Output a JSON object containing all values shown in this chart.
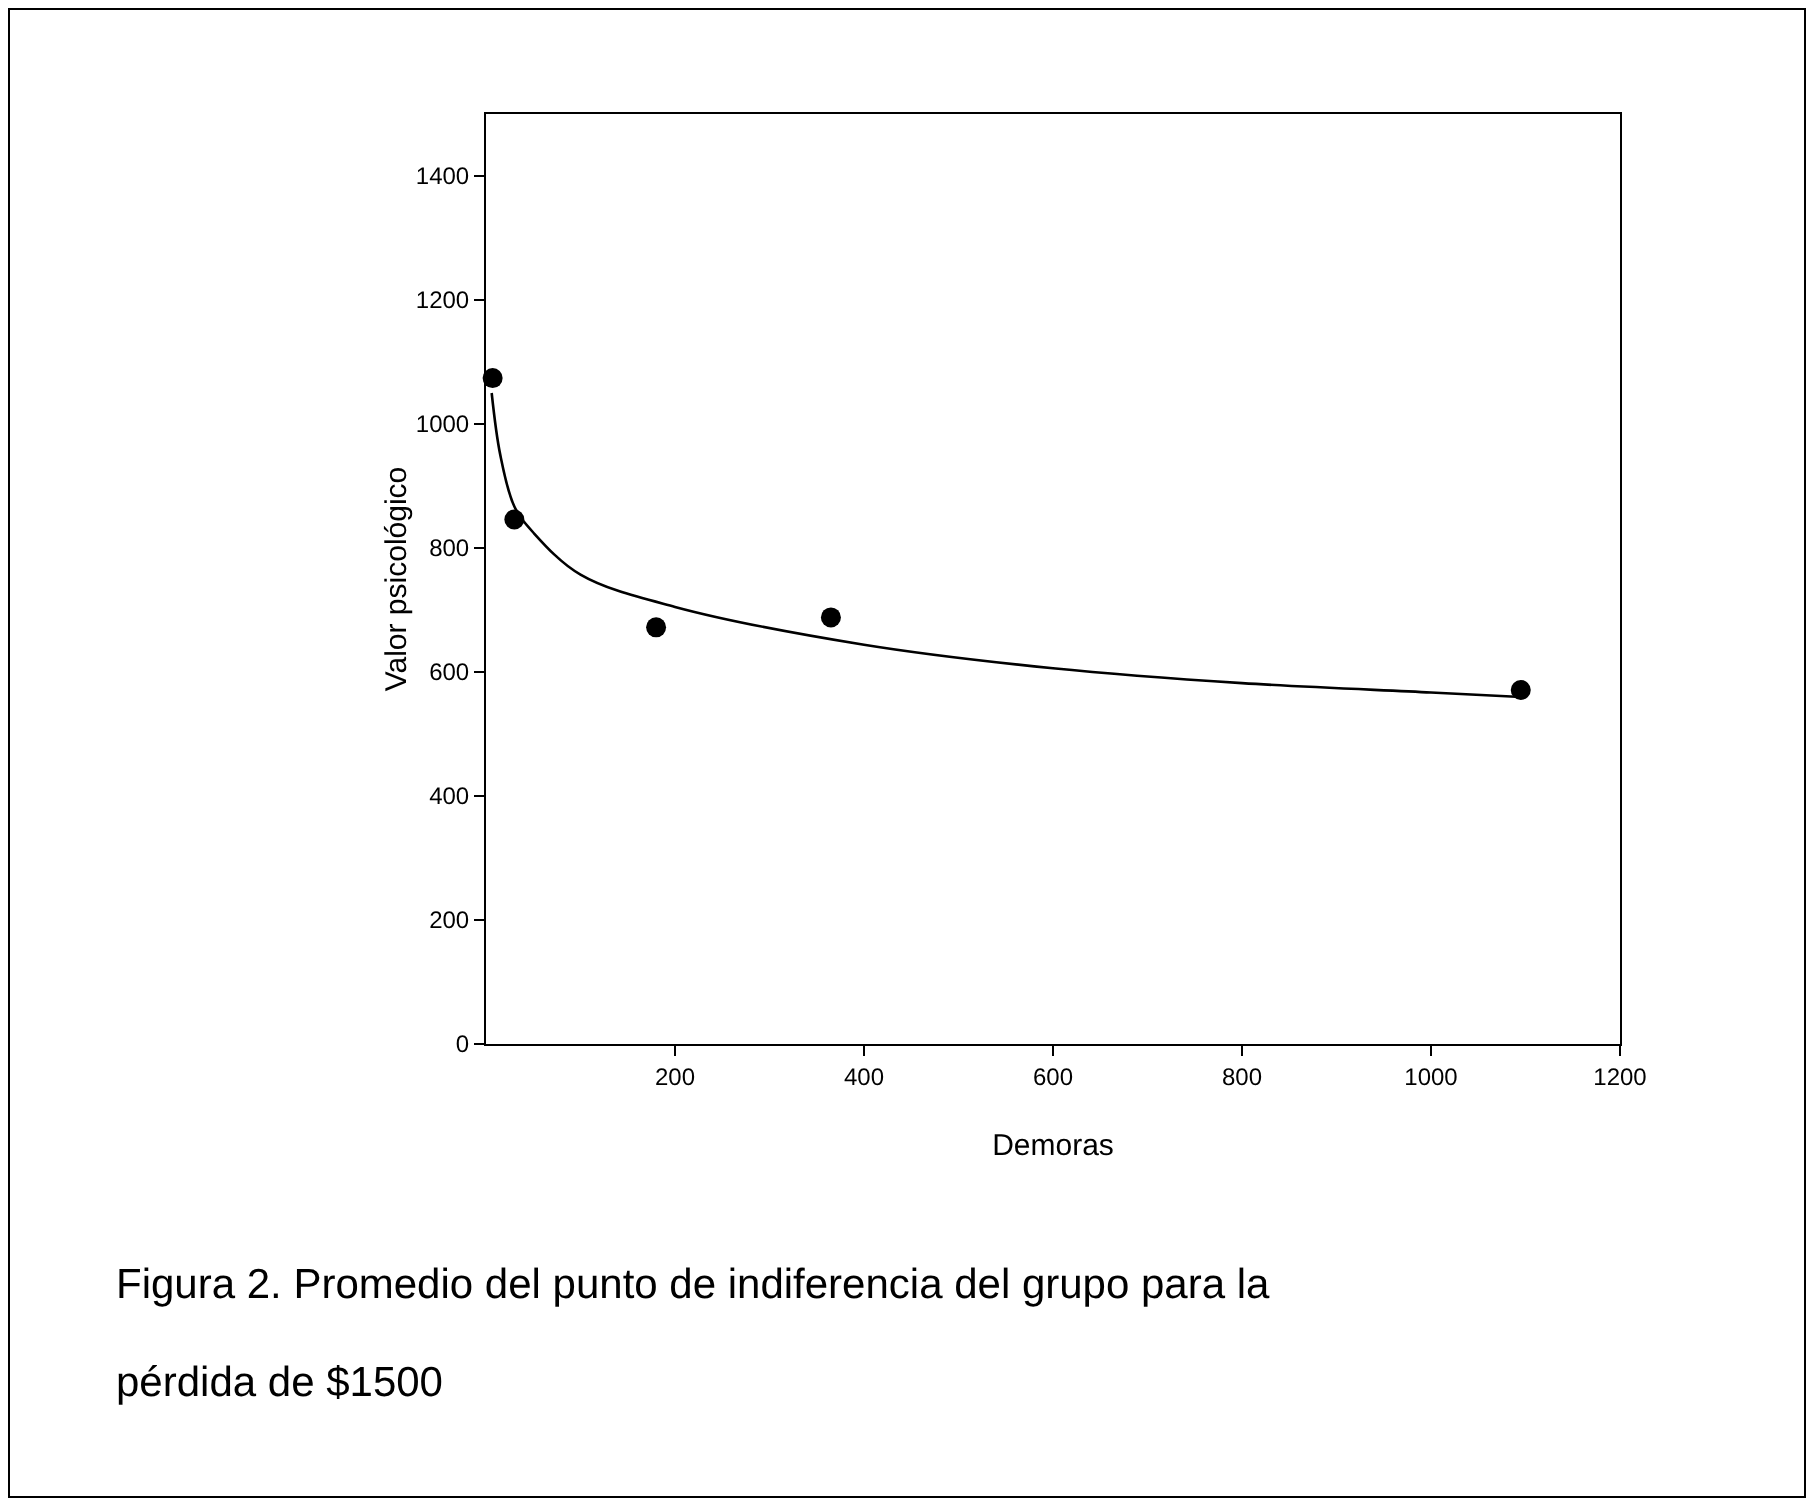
{
  "chart_data": {
    "type": "scatter",
    "xlabel": "Demoras",
    "ylabel": "Valor psicológico",
    "annotations": [
      "Figura 2. Promedio del punto de indiferencia del grupo para la pérdida de $1500"
    ],
    "series": [
      {
        "type": "scatter",
        "color": "#000000",
        "marker": "circle",
        "x": [
          7,
          30,
          180,
          365,
          1095
        ],
        "values": [
          1074,
          846,
          672,
          688,
          571
        ]
      },
      {
        "type": "line",
        "color": "#000000",
        "marker": "none",
        "line_style": "solid",
        "x": [
          6,
          15,
          30,
          50,
          100,
          200,
          400,
          600,
          800,
          1000,
          1090
        ],
        "values": [
          1050,
          951,
          867,
          825,
          757,
          705,
          644,
          606,
          582,
          567,
          560
        ]
      }
    ],
    "xlim": [
      0,
      1200
    ],
    "xticks": [
      200,
      400,
      600,
      800,
      1000,
      1200
    ],
    "ylim": [
      0,
      1500
    ],
    "yticks": [
      0,
      200,
      400,
      600,
      800,
      1000,
      1200,
      1400
    ],
    "grid": false
  }
}
